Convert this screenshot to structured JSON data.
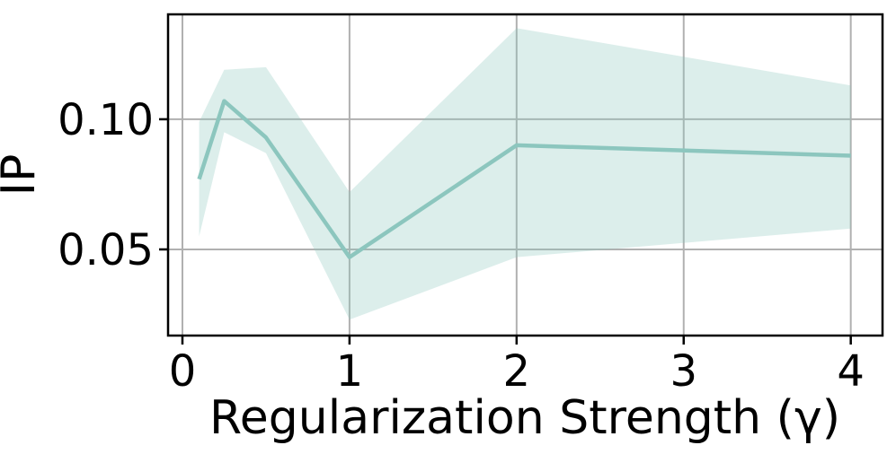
{
  "chart_data": {
    "type": "line",
    "title": "",
    "xlabel": "Regularization Strength (γ)",
    "ylabel": "IP",
    "x": [
      0.1,
      0.25,
      0.5,
      1,
      2,
      4
    ],
    "series": [
      {
        "name": "IP",
        "values": [
          0.077,
          0.107,
          0.093,
          0.047,
          0.09,
          0.086
        ],
        "band_upper": [
          0.099,
          0.119,
          0.12,
          0.072,
          0.135,
          0.113
        ],
        "band_lower": [
          0.055,
          0.095,
          0.087,
          0.023,
          0.047,
          0.058
        ],
        "color": "#8cc6be",
        "band_alpha": 0.3
      }
    ],
    "xticks": {
      "values": [
        0,
        1,
        2,
        3,
        4
      ],
      "labels": [
        "0",
        "1",
        "2",
        "3",
        "4"
      ]
    },
    "yticks": {
      "values": [
        0.05,
        0.1
      ],
      "labels": [
        "0.05",
        "0.10"
      ]
    },
    "xlim": [
      -0.086,
      4.19
    ],
    "ylim": [
      0.0169,
      0.1403
    ],
    "grid": true,
    "legend": false,
    "grid_color": "#b0b0b0",
    "spine_color": "#000000",
    "background": "#ffffff"
  }
}
